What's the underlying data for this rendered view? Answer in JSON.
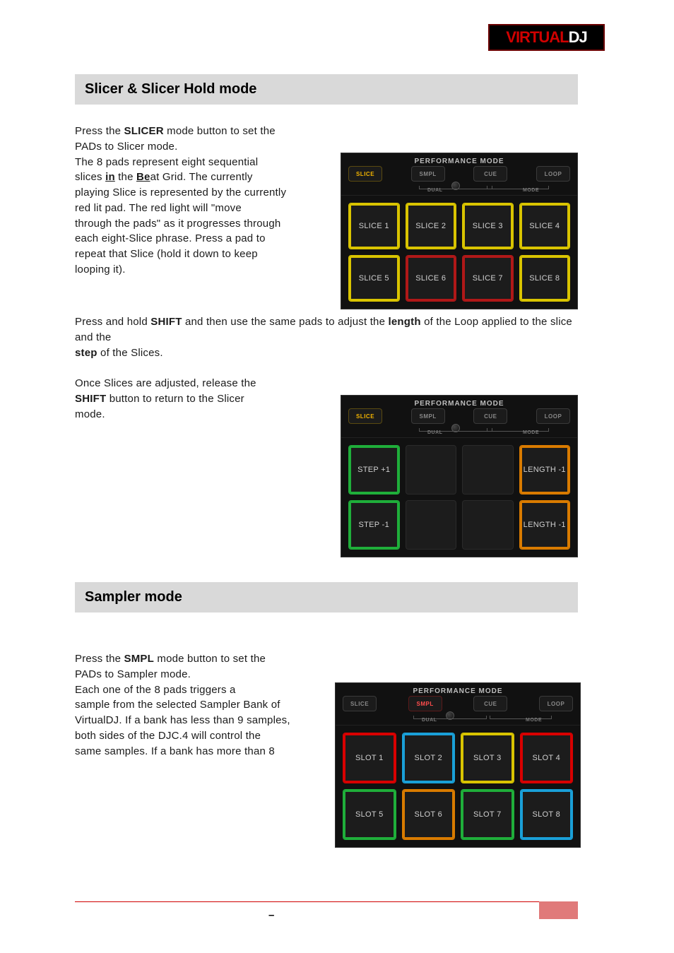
{
  "logo": {
    "text_a": "VIRTUAL",
    "text_b": "DJ"
  },
  "sections": {
    "slicer_title": "Slicer & Slicer Hold mode",
    "sampler_title": "Sampler mode"
  },
  "para1": {
    "t1": "Press the ",
    "t2": "SLICER",
    "t3": " mode button to set the",
    "t4": "PADs to Slicer mode.",
    "t5": "The 8 pads represent eight sequential",
    "t6": "slices  in  the  Beat  Grid.  The  currently",
    "t7": "playing Slice is represented by the currently",
    "t8": "red  lit  pad.  The  red  light  will  \"move",
    "t9": "through the pads\" as it progresses through",
    "t10": "each  eight-Slice  phrase.  Press  a  pad  to",
    "t11": "repeat that Slice (hold it down to keep",
    "t12": "looping it)."
  },
  "para2": {
    "t1": "Press and hold ",
    "t2": "SHIFT",
    "t3": " and then use the ",
    "t4": "same pads to adjust the ",
    "t5": "length",
    "t6": " of the Loop applied to the slice and the",
    "t7": "step",
    "t8": " of the Slices."
  },
  "para3": {
    "t1": "Once Slices are adjusted, release the ",
    "t2": "SHIFT",
    "t3": " button to return to the Slicer ",
    "t4": "mode."
  },
  "para4": {
    "t1": "Press the ",
    "t2": "SMPL",
    "t3": " mode button to set the",
    "t4": "PADs to Sampler mode.",
    "t5": "Each  one  of  the 8 pads  triggers a",
    "t6": "sample from the selected Sampler Bank of",
    "t7": "VirtualDJ. If a bank has less than 9 samples,",
    "t8": "both sides of the DJC.4 will control the",
    "t9": "same samples. If a bank has more than 8"
  },
  "panel1": {
    "mode_title": "PERFORMANCE MODE",
    "dual": "DUAL",
    "mode": "MODE",
    "buttons": {
      "slice": "SLICE",
      "smpl": "SMPL",
      "cue": "CUE",
      "loop": "LOOP"
    },
    "active": "slice",
    "pads": [
      "SLICE 1",
      "SLICE 2",
      "SLICE 3",
      "SLICE 4",
      "SLICE 5",
      "SLICE 6",
      "SLICE 7",
      "SLICE 8"
    ],
    "pad_colors": [
      "#d9c400",
      "#d9c400",
      "#d9c400",
      "#d9c400",
      "#d9c400",
      "#b01818",
      "#b01818",
      "#d9c400"
    ]
  },
  "panel2": {
    "mode_title": "PERFORMANCE MODE",
    "dual": "DUAL",
    "mode": "MODE",
    "buttons": {
      "slice": "SLICE",
      "smpl": "SMPL",
      "cue": "CUE",
      "loop": "LOOP"
    },
    "active": "slice",
    "pads": [
      "STEP +1",
      "",
      "",
      "LENGTH -1",
      "STEP -1",
      "",
      "",
      "LENGTH -1"
    ],
    "pad_colors": [
      "#1fae3a",
      "#222",
      "#222",
      "#d97b00",
      "#1fae3a",
      "#222",
      "#222",
      "#d97b00"
    ]
  },
  "panel3": {
    "mode_title": "PERFORMANCE MODE",
    "dual": "DUAL",
    "mode": "MODE",
    "buttons": {
      "slice": "SLICE",
      "smpl": "SMPL",
      "cue": "CUE",
      "loop": "LOOP"
    },
    "active": "smpl",
    "pads": [
      "SLOT 1",
      "SLOT 2",
      "SLOT 3",
      "SLOT 4",
      "SLOT 5",
      "SLOT 6",
      "SLOT 7",
      "SLOT 8"
    ],
    "pad_colors": [
      "#d80000",
      "#1aa0d8",
      "#d9c400",
      "#d80000",
      "#1fae3a",
      "#d97b00",
      "#1fae3a",
      "#1aa0d8"
    ]
  },
  "footer": {
    "dash": "–"
  }
}
